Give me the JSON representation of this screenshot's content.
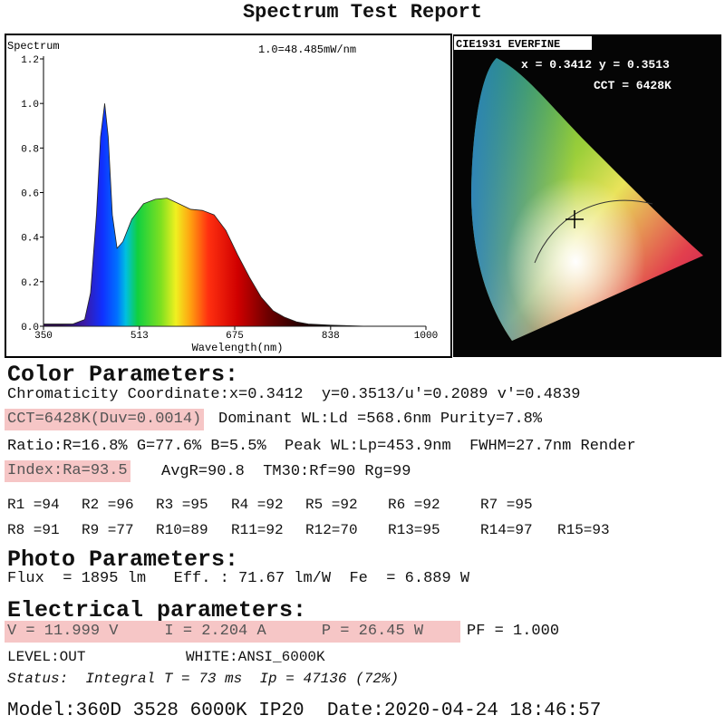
{
  "title": "Spectrum Test Report",
  "chart_data": {
    "type": "area",
    "title": "Spectrum",
    "subtitle": "1.0=48.485mW/nm",
    "x_label": "Wavelength(nm)",
    "x": [
      350,
      380,
      400,
      420,
      430,
      440,
      447,
      454,
      460,
      467,
      475,
      485,
      500,
      520,
      540,
      560,
      580,
      600,
      620,
      640,
      660,
      680,
      700,
      720,
      740,
      760,
      780,
      800,
      838,
      900,
      1000
    ],
    "values": [
      0.01,
      0.01,
      0.01,
      0.03,
      0.15,
      0.5,
      0.85,
      1.0,
      0.85,
      0.5,
      0.35,
      0.38,
      0.48,
      0.55,
      0.57,
      0.575,
      0.55,
      0.525,
      0.52,
      0.5,
      0.43,
      0.32,
      0.22,
      0.13,
      0.07,
      0.04,
      0.02,
      0.01,
      0.005,
      0,
      0
    ],
    "xlim": [
      350,
      1000
    ],
    "ylim": [
      0,
      1.2
    ],
    "xticks": [
      350,
      513,
      675,
      838,
      1000
    ],
    "yticks": [
      {
        "value": 0,
        "label": "0.0"
      },
      {
        "value": 0.2,
        "label": "0.2"
      },
      {
        "value": 0.4,
        "label": "0.4"
      },
      {
        "value": 0.6,
        "label": "0.6"
      },
      {
        "value": 0.8,
        "label": "0.8"
      },
      {
        "value": 1,
        "label": "1.0"
      },
      {
        "value": 1.2,
        "label": "1.2"
      }
    ]
  },
  "cie": {
    "title": "CIE1931 EVERFINE",
    "coords": "x = 0.3412 y = 0.3513",
    "cct": "CCT = 6428K"
  },
  "color_parameters": {
    "heading": "Color Parameters:",
    "chromaticity": "Chromaticity Coordinate:x=0.3412  y=0.3513/u'=0.2089 v'=0.4839",
    "cct": "CCT=6428K(Duv=0.0014)",
    "dominant": "Dominant WL:Ld =568.6nm Purity=7.8%",
    "ratio": "Ratio:R=16.8% G=77.6% B=5.5%  Peak WL:Lp=453.9nm  FWHM=27.7nm Render",
    "ra": "Index:Ra=93.5",
    "avg": "AvgR=90.8  TM30:Rf=90 Rg=99",
    "r_values": [
      "R1 =94",
      "R2 =96",
      "R3 =95",
      "R4 =92",
      "R5 =92",
      "R6 =92",
      "R7 =95",
      "R8 =91",
      "R9 =77",
      "R10=89",
      "R11=92",
      "R12=70",
      "R13=95",
      "R14=97",
      "R15=93"
    ]
  },
  "photo_parameters": {
    "heading": "Photo Parameters:",
    "line": "Flux  = 1895 lm   Eff. : 71.67 lm/W  Fe  = 6.889 W"
  },
  "electrical_parameters": {
    "heading": "Electrical parameters:",
    "vip": "V = 11.999 V     I = 2.204 A      P = 26.45 W",
    "pf": "PF = 1.000",
    "level": "LEVEL:OUT",
    "white": "WHITE:ANSI_6000K",
    "status": "Status:  Integral T = 73 ms  Ip = 47136 (72%)"
  },
  "footer": "Model:360D 3528 6000K IP20  Date:2020-04-24 18:46:57"
}
